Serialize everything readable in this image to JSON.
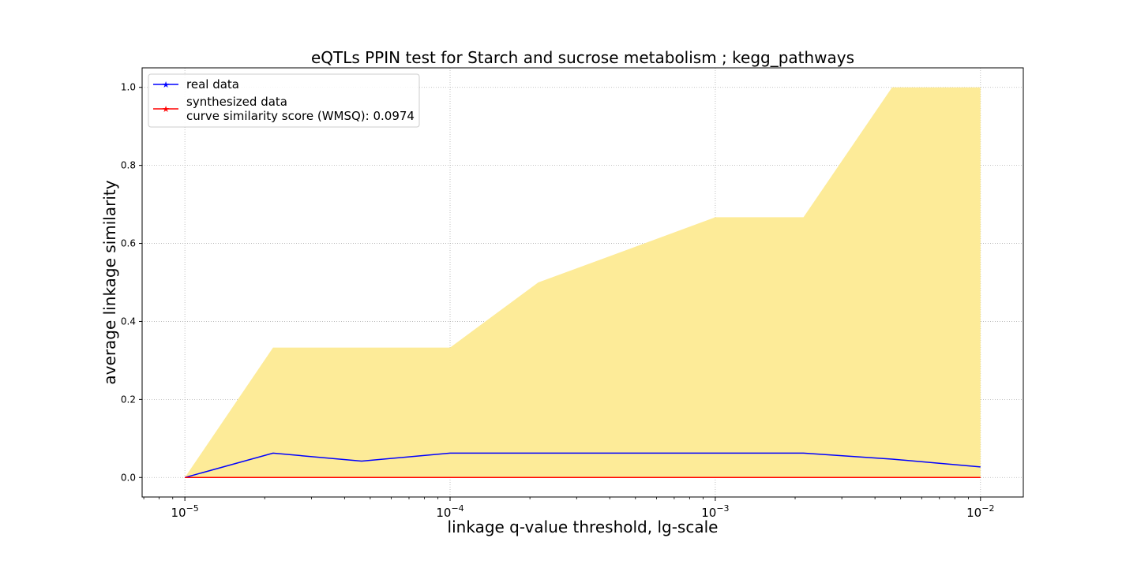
{
  "chart_data": {
    "type": "line",
    "title": "eQTLs PPIN test for Starch and sucrose metabolism ; kegg_pathways",
    "xlabel": "linkage q-value threshold, lg-scale",
    "ylabel": "average linkage similarity",
    "xscale": "log",
    "xlim": [
      6.9e-06,
      0.0145
    ],
    "ylim": [
      -0.05,
      1.05
    ],
    "grid": true,
    "legend_position": "top-left",
    "x": [
      1e-05,
      2.15e-05,
      4.64e-05,
      0.0001,
      0.000215,
      0.000464,
      0.001,
      0.00215,
      0.00464,
      0.01
    ],
    "band": {
      "lower": [
        0,
        0,
        0,
        0,
        0,
        0,
        0,
        0,
        0,
        0
      ],
      "upper": [
        0,
        0.333,
        0.333,
        0.333,
        0.5,
        0.5833,
        0.667,
        0.667,
        1.0,
        1.0
      ],
      "color": "#fdeb98"
    },
    "series": [
      {
        "name": "real data",
        "color": "#0000ff",
        "values": [
          0,
          0.0625,
          0.042,
          0.0625,
          0.0625,
          0.0625,
          0.0625,
          0.0625,
          0.047,
          0.027
        ]
      },
      {
        "name": "synthesized data\ncurve similarity score (WMSQ): 0.0974",
        "color": "#ff0000",
        "values": [
          0,
          0,
          0,
          0,
          0,
          0,
          0,
          0,
          0,
          0
        ]
      }
    ],
    "yticks": [
      0.0,
      0.2,
      0.4,
      0.6,
      0.8,
      1.0
    ],
    "ytick_labels": [
      "0.0",
      "0.2",
      "0.4",
      "0.6",
      "0.8",
      "1.0"
    ],
    "xticks": [
      1e-05,
      0.0001,
      0.001,
      0.01
    ],
    "xtick_exponents": [
      "−5",
      "−4",
      "−3",
      "−2"
    ],
    "xtick_base": "10"
  }
}
